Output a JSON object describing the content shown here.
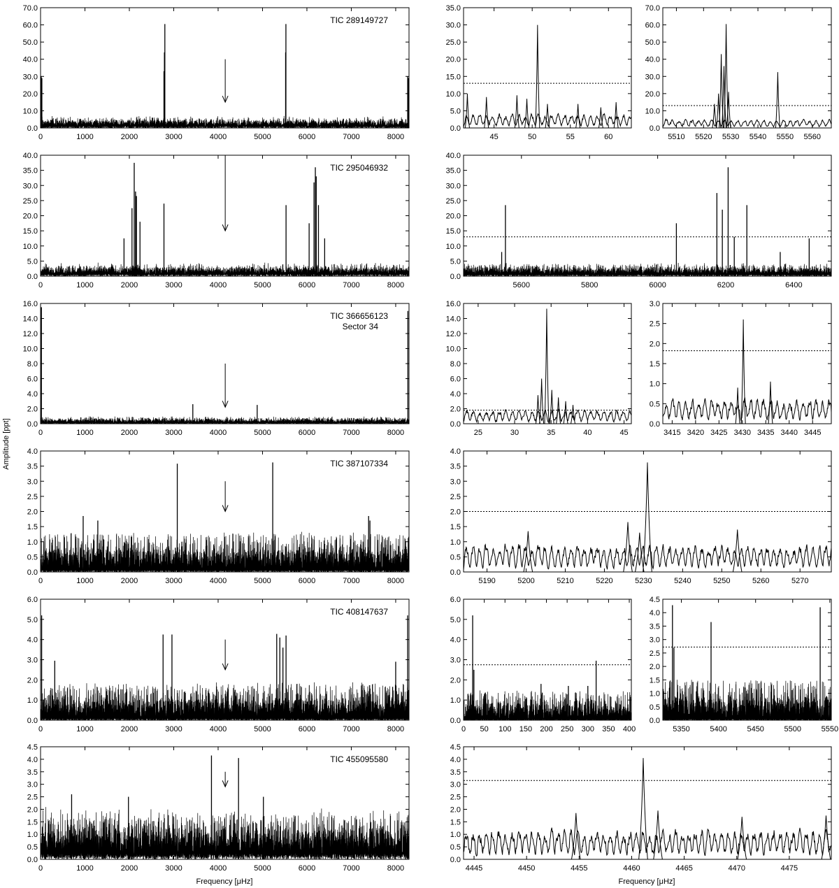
{
  "figure": {
    "ylabel": "Amplitude [ppt]",
    "xlabel": "Frequency [μHz]"
  },
  "chart_data": [
    {
      "id": "p1",
      "row": 0,
      "type": "line",
      "label_lines": [
        "TIC 289149727"
      ],
      "xlim": [
        0,
        8300
      ],
      "ylim": [
        0,
        70
      ],
      "xticks": [
        0,
        1000,
        2000,
        3000,
        4000,
        5000,
        6000,
        7000,
        8000
      ],
      "yticks": [
        0,
        10,
        20,
        30,
        40,
        50,
        60,
        70
      ],
      "ydec": 1,
      "noise": 7,
      "noise_floor": 3,
      "arrow": [
        4160,
        40,
        15
      ],
      "peaks": [
        [
          15,
          30
        ],
        [
          30,
          29
        ],
        [
          2780,
          33
        ],
        [
          2790,
          44
        ],
        [
          2800,
          60.5
        ],
        [
          5520,
          44
        ],
        [
          5527,
          60.5
        ],
        [
          8270,
          30
        ],
        [
          8285,
          29
        ]
      ]
    },
    {
      "id": "p2",
      "row": 0,
      "type": "line",
      "label_lines": [],
      "xlim": [
        41,
        63
      ],
      "ylim": [
        0,
        35
      ],
      "xticks": [
        45,
        50,
        55,
        60
      ],
      "yticks": [
        0,
        5,
        10,
        15,
        20,
        25,
        30,
        35
      ],
      "ydec": 1,
      "threshold": 13,
      "noise": 5,
      "noise_floor": 0,
      "smooth": true,
      "peaks": [
        [
          41.5,
          10
        ],
        [
          44,
          9
        ],
        [
          48,
          9.5
        ],
        [
          49.3,
          8.5
        ],
        [
          50.7,
          30
        ],
        [
          52,
          7
        ],
        [
          56,
          7
        ],
        [
          59,
          6
        ],
        [
          61,
          7.5
        ]
      ]
    },
    {
      "id": "p3",
      "row": 0,
      "type": "line",
      "label_lines": [],
      "xlim": [
        5505,
        5567
      ],
      "ylim": [
        0,
        70
      ],
      "xticks": [
        5510,
        5520,
        5530,
        5540,
        5550,
        5560
      ],
      "yticks": [
        0,
        10,
        20,
        30,
        40,
        50,
        60,
        70
      ],
      "ydec": 1,
      "threshold": 13,
      "noise": 6,
      "noise_floor": 0,
      "smooth": true,
      "peaks": [
        [
          5524,
          14
        ],
        [
          5525.5,
          20
        ],
        [
          5526.5,
          43
        ],
        [
          5527.5,
          36
        ],
        [
          5528.3,
          60.5
        ],
        [
          5529.2,
          21
        ],
        [
          5547.3,
          32.5
        ]
      ]
    },
    {
      "id": "p4",
      "row": 1,
      "type": "line",
      "label_lines": [
        "TIC 295046932"
      ],
      "xlim": [
        0,
        8300
      ],
      "ylim": [
        0,
        40
      ],
      "xticks": [
        0,
        1000,
        2000,
        3000,
        4000,
        5000,
        6000,
        7000,
        8000
      ],
      "yticks": [
        0,
        5,
        10,
        15,
        20,
        25,
        30,
        35,
        40
      ],
      "ydec": 1,
      "noise": 4.5,
      "noise_floor": 2,
      "arrow": [
        4160,
        40,
        15
      ],
      "peaks": [
        [
          1880,
          12.5
        ],
        [
          2060,
          22.5
        ],
        [
          2110,
          37.5
        ],
        [
          2140,
          28
        ],
        [
          2160,
          26.5
        ],
        [
          2240,
          18
        ],
        [
          2780,
          24
        ],
        [
          5530,
          23.5
        ],
        [
          6050,
          17.5
        ],
        [
          6160,
          31
        ],
        [
          6190,
          36
        ],
        [
          6210,
          33
        ],
        [
          6260,
          23.5
        ],
        [
          6400,
          12.5
        ]
      ]
    },
    {
      "id": "p5",
      "row": 1,
      "type": "line",
      "label_lines": [],
      "xlim": [
        5430,
        6510
      ],
      "ylim": [
        0,
        40
      ],
      "xticks": [
        5600,
        5800,
        6000,
        6200,
        6400
      ],
      "yticks": [
        0,
        5,
        10,
        15,
        20,
        25,
        30,
        35,
        40
      ],
      "ydec": 1,
      "threshold": 13,
      "noise": 4.5,
      "noise_floor": 1.5,
      "peaks": [
        [
          5542,
          8
        ],
        [
          5553,
          23.5
        ],
        [
          6055,
          17.5
        ],
        [
          6174,
          27.5
        ],
        [
          6190,
          22
        ],
        [
          6207,
          36
        ],
        [
          6225,
          13
        ],
        [
          6262,
          23.5
        ],
        [
          6360,
          8
        ],
        [
          6445,
          12.5
        ]
      ]
    },
    {
      "id": "p6",
      "row": 2,
      "type": "line",
      "label_lines": [
        "TIC 366656123",
        "Sector 34"
      ],
      "xlim": [
        0,
        8300
      ],
      "ylim": [
        0,
        16
      ],
      "xticks": [
        0,
        1000,
        2000,
        3000,
        4000,
        5000,
        6000,
        7000,
        8000
      ],
      "yticks": [
        0,
        2,
        4,
        6,
        8,
        10,
        12,
        14,
        16
      ],
      "ydec": 1,
      "noise": 1.0,
      "noise_floor": 0.35,
      "arrow": [
        4160,
        8,
        2.2
      ],
      "peaks": [
        [
          20,
          15.5
        ],
        [
          3430,
          2.6
        ],
        [
          4880,
          2.5
        ],
        [
          8275,
          15
        ]
      ]
    },
    {
      "id": "p7",
      "row": 2,
      "type": "line",
      "label_lines": [],
      "xlim": [
        23,
        46
      ],
      "ylim": [
        0,
        16
      ],
      "xticks": [
        25,
        30,
        35,
        40,
        45
      ],
      "yticks": [
        0,
        2,
        4,
        6,
        8,
        10,
        12,
        14,
        16
      ],
      "ydec": 1,
      "threshold": 1.8,
      "noise": 2.3,
      "noise_floor": 0,
      "smooth": true,
      "peaks": [
        [
          33.2,
          3.8
        ],
        [
          33.7,
          6
        ],
        [
          34.4,
          15.3
        ],
        [
          35.1,
          4.5
        ],
        [
          36,
          3.5
        ],
        [
          37,
          3
        ],
        [
          38,
          2.5
        ]
      ]
    },
    {
      "id": "p8",
      "row": 2,
      "type": "line",
      "label_lines": [],
      "xlim": [
        3413,
        3449
      ],
      "ylim": [
        0,
        3
      ],
      "xticks": [
        3415,
        3420,
        3425,
        3430,
        3435,
        3440,
        3445
      ],
      "yticks": [
        0,
        0.5,
        1,
        1.5,
        2,
        2.5,
        3
      ],
      "ydec": 1,
      "threshold": 1.82,
      "noise": 0.75,
      "noise_floor": 0,
      "smooth": true,
      "peaks": [
        [
          3430.2,
          2.6
        ],
        [
          3436,
          1.05
        ],
        [
          3429,
          0.9
        ]
      ]
    },
    {
      "id": "p9",
      "row": 3,
      "type": "line",
      "label_lines": [
        "TIC 387107334"
      ],
      "xlim": [
        0,
        8300
      ],
      "ylim": [
        0,
        4
      ],
      "xticks": [
        0,
        1000,
        2000,
        3000,
        4000,
        5000,
        6000,
        7000,
        8000
      ],
      "yticks": [
        0,
        0.5,
        1,
        1.5,
        2,
        2.5,
        3,
        3.5,
        4
      ],
      "ydec": 1,
      "noise": 1.35,
      "noise_floor": 0.15,
      "arrow": [
        4160,
        3,
        2
      ],
      "peaks": [
        [
          3080,
          3.58
        ],
        [
          5230,
          3.62
        ],
        [
          960,
          1.85
        ],
        [
          1290,
          1.7
        ],
        [
          7390,
          1.85
        ],
        [
          7420,
          1.7
        ]
      ]
    },
    {
      "id": "p10",
      "row": 3,
      "type": "line",
      "label_lines": [],
      "xlim": [
        5184,
        5278
      ],
      "ylim": [
        0,
        4
      ],
      "xticks": [
        5190,
        5200,
        5210,
        5220,
        5230,
        5240,
        5250,
        5260,
        5270
      ],
      "yticks": [
        0,
        0.5,
        1,
        1.5,
        2,
        2.5,
        3,
        3.5,
        4
      ],
      "ydec": 1,
      "threshold": 2,
      "noise": 1.1,
      "noise_floor": 0,
      "smooth": true,
      "peaks": [
        [
          5200.5,
          1.35
        ],
        [
          5226,
          1.65
        ],
        [
          5229,
          1.3
        ],
        [
          5231,
          3.62
        ],
        [
          5254,
          1.4
        ]
      ]
    },
    {
      "id": "p11",
      "row": 4,
      "type": "line",
      "label_lines": [
        "TIC 408147637"
      ],
      "xlim": [
        0,
        8300
      ],
      "ylim": [
        0,
        6
      ],
      "xticks": [
        0,
        1000,
        2000,
        3000,
        4000,
        5000,
        6000,
        7000,
        8000
      ],
      "yticks": [
        0,
        1,
        2,
        3,
        4,
        5,
        6
      ],
      "ydec": 1,
      "noise": 1.9,
      "noise_floor": 0.2,
      "arrow": [
        4160,
        4,
        2.5
      ],
      "peaks": [
        [
          25,
          5.2
        ],
        [
          320,
          2.95
        ],
        [
          2760,
          4.25
        ],
        [
          2960,
          4.25
        ],
        [
          5320,
          4.28
        ],
        [
          5390,
          4.1
        ],
        [
          5460,
          3.6
        ],
        [
          5530,
          4.2
        ],
        [
          8000,
          2.9
        ],
        [
          8270,
          5.2
        ]
      ]
    },
    {
      "id": "p12",
      "row": 4,
      "type": "line",
      "label_lines": [],
      "xlim": [
        0,
        405
      ],
      "ylim": [
        0,
        6
      ],
      "xticks": [
        0,
        50,
        100,
        150,
        200,
        250,
        300,
        350,
        400
      ],
      "yticks": [
        0,
        1,
        2,
        3,
        4,
        5,
        6
      ],
      "ydec": 1,
      "threshold": 2.75,
      "noise": 1.5,
      "noise_floor": 0.1,
      "peaks": [
        [
          22,
          5.2
        ],
        [
          25,
          2.5
        ],
        [
          320,
          2.95
        ],
        [
          187,
          1.8
        ],
        [
          300,
          1.7
        ],
        [
          253,
          1.7
        ]
      ]
    },
    {
      "id": "p13",
      "row": 4,
      "type": "line",
      "label_lines": [],
      "xlim": [
        5325,
        5552
      ],
      "ylim": [
        0,
        4.5
      ],
      "xticks": [
        5350,
        5400,
        5450,
        5500,
        5550
      ],
      "yticks": [
        0,
        0.5,
        1,
        1.5,
        2,
        2.5,
        3,
        3.5,
        4,
        4.5
      ],
      "ydec": 1,
      "threshold": 2.72,
      "noise": 1.55,
      "noise_floor": 0.1,
      "peaks": [
        [
          5338,
          4.28
        ],
        [
          5340,
          2.7
        ],
        [
          5390,
          3.65
        ],
        [
          5537,
          4.2
        ]
      ]
    },
    {
      "id": "p14",
      "row": 5,
      "type": "line",
      "label_lines": [
        "TIC 455095580"
      ],
      "xlim": [
        0,
        8300
      ],
      "ylim": [
        0,
        4.5
      ],
      "xticks": [
        0,
        1000,
        2000,
        3000,
        4000,
        5000,
        6000,
        7000,
        8000
      ],
      "yticks": [
        0,
        0.5,
        1,
        1.5,
        2,
        2.5,
        3,
        3.5,
        4,
        4.5
      ],
      "ydec": 1,
      "noise": 2.1,
      "noise_floor": 0.6,
      "arrow": [
        4160,
        3.5,
        2.9
      ],
      "peaks": [
        [
          3850,
          4.15
        ],
        [
          4460,
          4.05
        ],
        [
          700,
          2.6
        ],
        [
          1980,
          2.5
        ],
        [
          5020,
          2.5
        ]
      ]
    },
    {
      "id": "p15",
      "row": 5,
      "type": "line",
      "label_lines": [],
      "xlim": [
        4444,
        4479
      ],
      "ylim": [
        0,
        4.5
      ],
      "xticks": [
        4445,
        4450,
        4455,
        4460,
        4465,
        4470,
        4475
      ],
      "yticks": [
        0,
        0.5,
        1,
        1.5,
        2,
        2.5,
        3,
        3.5,
        4,
        4.5
      ],
      "ydec": 1,
      "threshold": 3.15,
      "noise": 1.45,
      "noise_floor": 0,
      "smooth": true,
      "peaks": [
        [
          4461.1,
          4.05
        ],
        [
          4454.7,
          1.85
        ],
        [
          4462.5,
          1.95
        ],
        [
          4478.5,
          1.75
        ],
        [
          4470.5,
          1.7
        ]
      ]
    }
  ]
}
